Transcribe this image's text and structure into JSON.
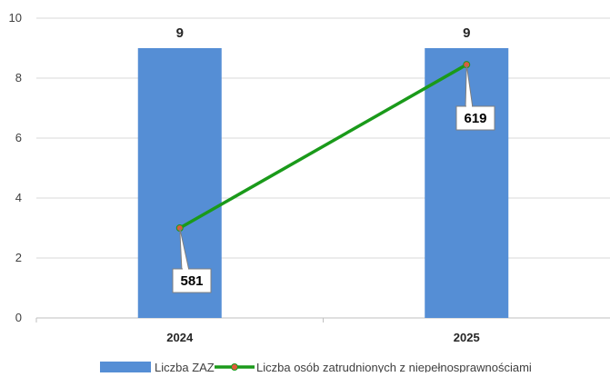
{
  "chart_data": {
    "type": "bar",
    "categories": [
      "2024",
      "2025"
    ],
    "series": [
      {
        "name": "Liczba ZAZ",
        "type": "bar",
        "values": [
          9,
          9
        ],
        "color": "#558ed5",
        "data_labels": [
          "9",
          "9"
        ]
      },
      {
        "name": "Liczba osób zatrudnionych z niepełnosprawnościami",
        "type": "line",
        "values": [
          581,
          619
        ],
        "plotted_on_primary_axis_as": [
          3.0,
          8.45
        ],
        "color": "#1a9a1a",
        "marker_color": "#e05a3a",
        "data_labels": [
          "581",
          "619"
        ]
      }
    ],
    "title": "",
    "xlabel": "",
    "ylabel": "",
    "ylim": [
      0,
      10
    ],
    "yticks": [
      "0",
      "2",
      "4",
      "6",
      "8",
      "10"
    ],
    "grid": true,
    "legend_position": "bottom"
  }
}
